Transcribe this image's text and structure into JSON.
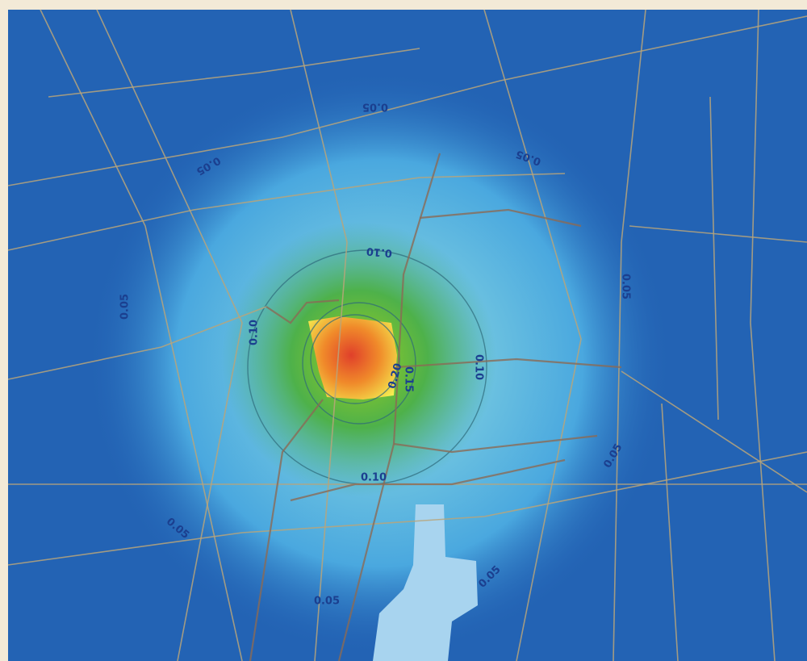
{
  "contour_labels": [
    "0.05",
    "0.05",
    "0.05",
    "0.05",
    "0.05",
    "0.10",
    "0.10",
    "0.10",
    "0.15",
    "0.20",
    "0.10",
    "0.05",
    "0.05",
    "0.05",
    "0.05"
  ]
}
